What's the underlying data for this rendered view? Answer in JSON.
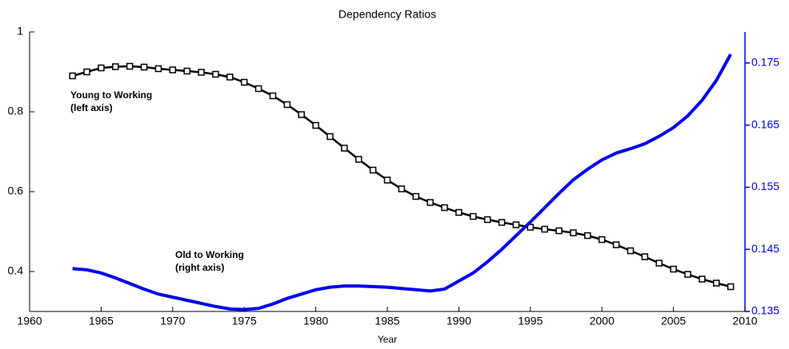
{
  "chart_data": {
    "type": "line",
    "title": "Dependency Ratios",
    "xlabel": "Year",
    "x": [
      1963,
      1964,
      1965,
      1966,
      1967,
      1968,
      1969,
      1970,
      1971,
      1972,
      1973,
      1974,
      1975,
      1976,
      1977,
      1978,
      1979,
      1980,
      1981,
      1982,
      1983,
      1984,
      1985,
      1986,
      1987,
      1988,
      1989,
      1990,
      1991,
      1992,
      1993,
      1994,
      1995,
      1996,
      1997,
      1998,
      1999,
      2000,
      2001,
      2002,
      2003,
      2004,
      2005,
      2006,
      2007,
      2008,
      2009
    ],
    "series": [
      {
        "name": "Young to Working",
        "color": "#000000",
        "marker": "square",
        "axis": "y",
        "values": [
          0.89,
          0.9,
          0.91,
          0.913,
          0.914,
          0.912,
          0.908,
          0.905,
          0.902,
          0.899,
          0.894,
          0.887,
          0.874,
          0.858,
          0.84,
          0.818,
          0.793,
          0.766,
          0.738,
          0.709,
          0.681,
          0.654,
          0.629,
          0.607,
          0.588,
          0.573,
          0.56,
          0.548,
          0.538,
          0.53,
          0.523,
          0.517,
          0.511,
          0.506,
          0.502,
          0.497,
          0.49,
          0.48,
          0.467,
          0.452,
          0.437,
          0.421,
          0.406,
          0.393,
          0.381,
          0.371,
          0.362
        ]
      },
      {
        "name": "Old to Working",
        "color": "#0000ee",
        "axis": "y2",
        "values": [
          0.1419,
          0.1417,
          0.1412,
          0.1404,
          0.1395,
          0.1386,
          0.1378,
          0.1373,
          0.1368,
          0.1363,
          0.1358,
          0.1354,
          0.1353,
          0.1355,
          0.1362,
          0.1371,
          0.1378,
          0.1385,
          0.1389,
          0.1391,
          0.1391,
          0.139,
          0.1389,
          0.1387,
          0.1385,
          0.1383,
          0.1386,
          0.1399,
          0.1412,
          0.143,
          0.145,
          0.1472,
          0.1494,
          0.1517,
          0.154,
          0.1562,
          0.1579,
          0.1594,
          0.1605,
          0.1612,
          0.162,
          0.1632,
          0.1646,
          0.1665,
          0.169,
          0.1722,
          0.1764
        ]
      }
    ],
    "annotations": [
      [
        "Young to Working",
        "(left axis)"
      ],
      [
        "Old to Working",
        "(right axis)"
      ]
    ],
    "xlim": [
      1960,
      2010
    ],
    "xticks": [
      1960,
      1965,
      1970,
      1975,
      1980,
      1985,
      1990,
      1995,
      2000,
      2005,
      2010
    ],
    "ylim": [
      0.3,
      1
    ],
    "yticks": [
      0.4,
      0.6,
      0.8,
      1
    ],
    "y2lim": [
      0.135,
      0.18
    ],
    "y2ticks": [
      0.135,
      0.145,
      0.155,
      0.165,
      0.175
    ],
    "y2color": "#0000ee",
    "grid": false
  }
}
